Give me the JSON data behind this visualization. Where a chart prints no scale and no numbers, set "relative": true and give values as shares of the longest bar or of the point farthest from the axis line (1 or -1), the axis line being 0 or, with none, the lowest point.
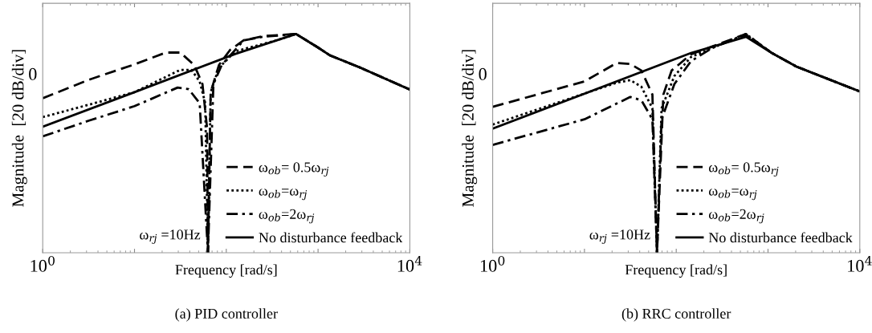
{
  "chart_data": [
    {
      "type": "line",
      "relative": true,
      "title": "(a) PID controller",
      "xlabel": "Frequency [rad/s]",
      "ylabel": "Magnitude  [20 dB/div]",
      "log": "x",
      "grid": false,
      "legend": "bottom right",
      "xlim": [
        1,
        10000
      ],
      "xticks": [
        {
          "value": 1,
          "label": "10$^{0}$"
        },
        {
          "value": 10,
          "label": null
        },
        {
          "value": 100,
          "label": null
        },
        {
          "value": 1000,
          "label": null
        },
        {
          "value": 10000,
          "label": "10$^{4}$"
        }
      ],
      "annotations": [
        "0",
        "ω$_{rj}$ =10Hz"
      ],
      "series": [
        {
          "name": "ω$_{ob}$= 0.5ω$_{rj}$",
          "color": "#000000",
          "line_style": "dashed",
          "x": [
            1,
            3.2,
            10,
            16.6,
            21.9,
            31.6,
            44.7,
            55,
            61.7,
            63.1,
            67.6,
            83.2,
            110,
            155,
            251,
            575,
            1000,
            1350,
            2880,
            10000
          ],
          "values": [
            0.706,
            0.791,
            0.861,
            0.896,
            0.915,
            0.915,
            0.858,
            0.771,
            0.571,
            0,
            0.734,
            0.858,
            0.927,
            0.971,
            0.99,
            1,
            0.938,
            0.902,
            0.846,
            0.746
          ]
        },
        {
          "name": "ω$_{ob}$=ω$_{rj}$",
          "color": "#000000",
          "line_style": "dotted",
          "x": [
            1,
            3.2,
            10,
            31.6,
            41.7,
            51.3,
            58.9,
            63.1,
            67.6,
            83.2,
            126,
            355,
            575,
            1000,
            1350,
            2880,
            10000
          ],
          "values": [
            0.62,
            0.677,
            0.734,
            0.836,
            0.836,
            0.783,
            0.685,
            0,
            0.734,
            0.846,
            0.921,
            0.971,
            1,
            0.938,
            0.902,
            0.846,
            0.746
          ]
        },
        {
          "name": "ω$_{ob}$=2ω$_{rj}$",
          "color": "#000000",
          "line_style": "dashdot",
          "x": [
            1,
            3.2,
            10,
            29.5,
            38.9,
            51.3,
            63.1,
            72.4,
            89.1,
            155,
            251,
            575,
            1000,
            1350,
            2880,
            10000
          ],
          "values": [
            0.532,
            0.604,
            0.67,
            0.755,
            0.748,
            0.683,
            0,
            0.771,
            0.858,
            0.971,
            0.987,
            1,
            0.938,
            0.902,
            0.846,
            0.746
          ]
        },
        {
          "name": "No disturbance feedback",
          "color": "#000000",
          "line_style": "solid",
          "x": [
            1,
            10,
            126,
            575,
            1000,
            1350,
            2880,
            10000
          ],
          "values": [
            0.576,
            0.734,
            0.909,
            1,
            0.938,
            0.902,
            0.846,
            0.746
          ]
        }
      ]
    },
    {
      "type": "line",
      "relative": true,
      "title": "(b) RRC controller",
      "xlabel": "Frequency [rad/s]",
      "ylabel": "Magnitude  [20 dB/div]",
      "log": "x",
      "grid": false,
      "legend": "bottom right",
      "xlim": [
        1,
        10000
      ],
      "xticks": [
        {
          "value": 1,
          "label": "10$^{0}$"
        },
        {
          "value": 10,
          "label": null
        },
        {
          "value": 100,
          "label": null
        },
        {
          "value": 1000,
          "label": null
        },
        {
          "value": 10000,
          "label": "10$^{4}$"
        }
      ],
      "annotations": [
        "0",
        "ω$_{rj}$ =10Hz"
      ],
      "series": [
        {
          "name": "ω$_{ob}$= 0.5ω$_{rj}$",
          "color": "#000000",
          "line_style": "dashed",
          "x": [
            1,
            10,
            22.4,
            31.6,
            41.7,
            55,
            61.7,
            72.4,
            89.1,
            145,
            251,
            575,
            1100,
            2040,
            10000
          ],
          "values": [
            0.667,
            0.783,
            0.867,
            0.863,
            0.833,
            0.723,
            0,
            0.723,
            0.833,
            0.907,
            0.944,
            1,
            0.913,
            0.851,
            0.737
          ]
        },
        {
          "name": "ω$_{ob}$=ω$_{rj}$",
          "color": "#000000",
          "line_style": "dotted",
          "x": [
            1,
            22.4,
            31.6,
            41.7,
            55,
            61.7,
            69.2,
            95.5,
            145,
            575,
            1100,
            2040,
            10000
          ],
          "values": [
            0.586,
            0.777,
            0.789,
            0.759,
            0.66,
            0,
            0.66,
            0.808,
            0.895,
            1,
            0.913,
            0.851,
            0.737
          ]
        },
        {
          "name": "ω$_{ob}$=2ω$_{rj}$",
          "color": "#000000",
          "line_style": "dashdot",
          "x": [
            1,
            10,
            31.6,
            41.7,
            55,
            61.7,
            69.2,
            95.5,
            145,
            251,
            575,
            1100,
            2040,
            10000
          ],
          "values": [
            0.493,
            0.61,
            0.712,
            0.697,
            0.61,
            0,
            0.61,
            0.771,
            0.876,
            0.938,
            0.996,
            0.913,
            0.851,
            0.737
          ]
        },
        {
          "name": "No disturbance feedback",
          "color": "#000000",
          "line_style": "solid",
          "x": [
            1,
            145,
            575,
            1100,
            2040,
            10000
          ],
          "values": [
            0.567,
            0.913,
            0.987,
            0.913,
            0.851,
            0.737
          ]
        }
      ]
    }
  ]
}
